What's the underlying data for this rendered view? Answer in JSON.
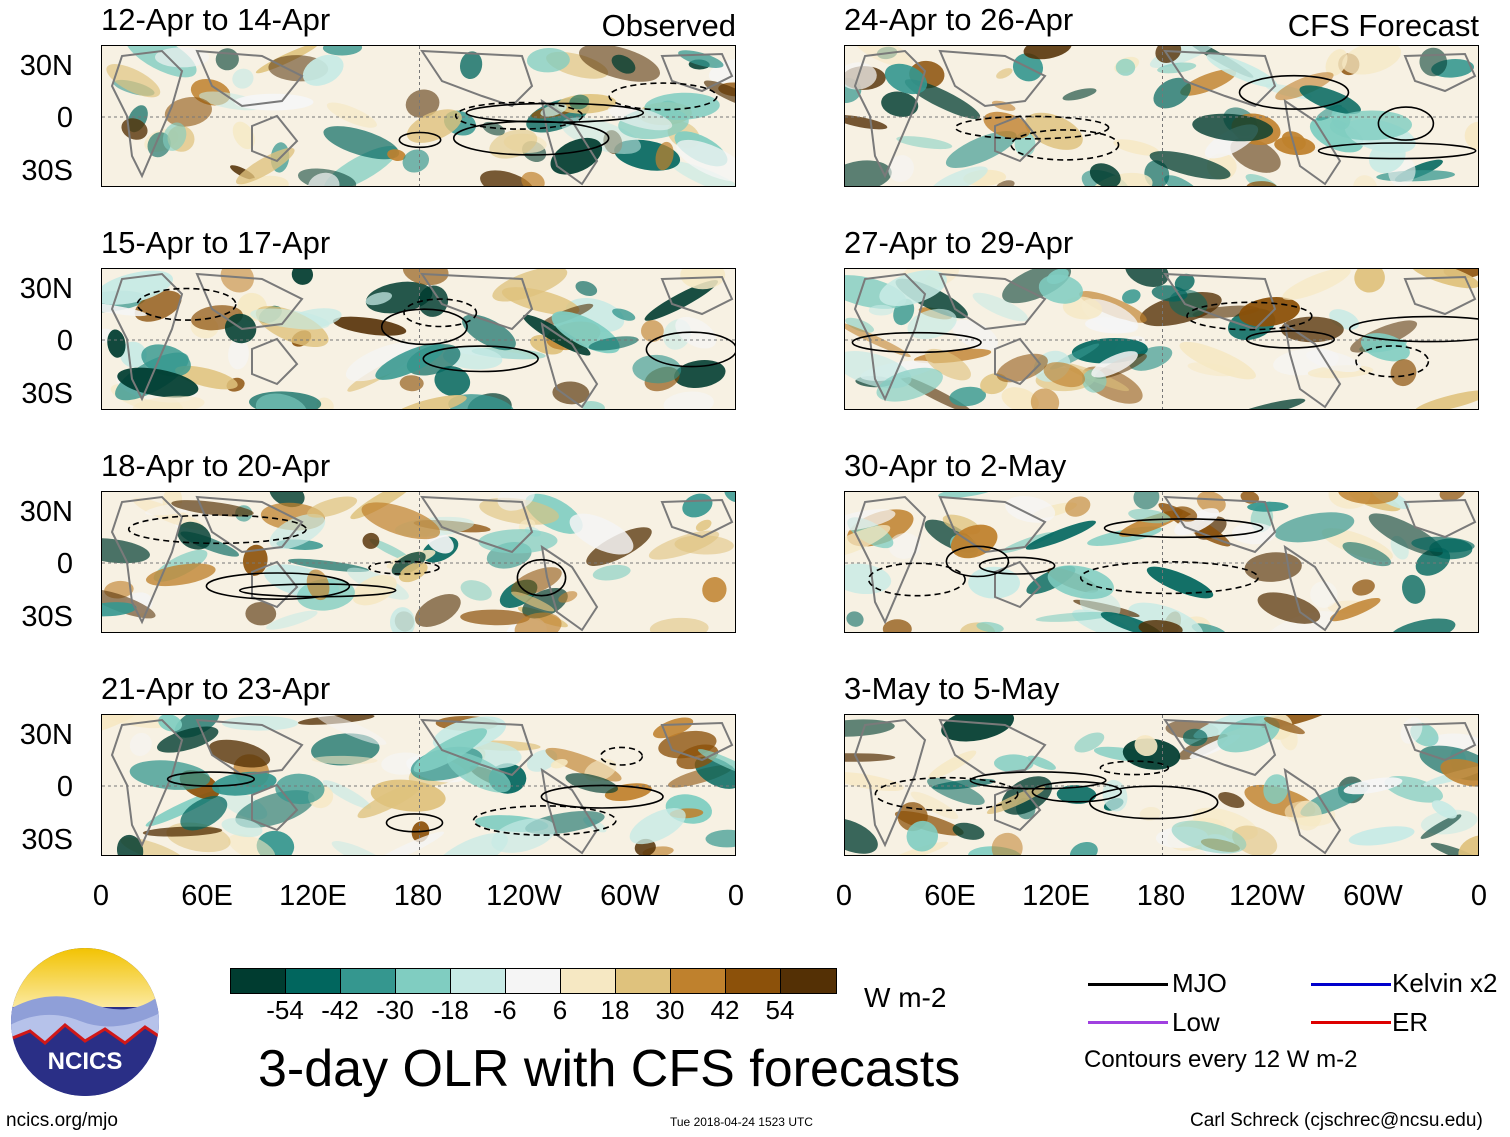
{
  "figure_title": "3-day OLR with CFS forecasts",
  "columns": {
    "left_tag": "Observed",
    "right_tag": "CFS Forecast"
  },
  "panels_left": [
    "12-Apr to 14-Apr",
    "15-Apr to 17-Apr",
    "18-Apr to 20-Apr",
    "21-Apr to 23-Apr"
  ],
  "panels_right": [
    "24-Apr to 26-Apr",
    "27-Apr to 29-Apr",
    "30-Apr to 2-May",
    "3-May to 5-May"
  ],
  "lat_labels": [
    "30N",
    "0",
    "30S"
  ],
  "lon_labels": [
    "0",
    "60E",
    "120E",
    "180",
    "120W",
    "60W",
    "0"
  ],
  "colorbar": {
    "labels": [
      "-54",
      "-42",
      "-30",
      "-18",
      "-6",
      "6",
      "18",
      "30",
      "42",
      "54"
    ],
    "colors": [
      "#003c30",
      "#01665e",
      "#35978f",
      "#80cdc1",
      "#c7eae5",
      "#f5f5f5",
      "#f6e8c3",
      "#dfc27d",
      "#bf812d",
      "#8c510a",
      "#543005"
    ],
    "units": "W m-2"
  },
  "legend": {
    "mjo": {
      "label": "MJO",
      "color": "#000000"
    },
    "kelvin": {
      "label": "Kelvin x2",
      "color": "#0000cc"
    },
    "low": {
      "label": "Low",
      "color": "#a040e0"
    },
    "er": {
      "label": "ER",
      "color": "#dd0000"
    },
    "contour_note": "Contours every 12 W m-2"
  },
  "logo_text": "NCICS",
  "footer": {
    "left": "ncics.org/mjo",
    "center": "Tue 2018-04-24 1523 UTC",
    "right": "Carl Schreck (cjschrec@ncsu.edu)"
  }
}
